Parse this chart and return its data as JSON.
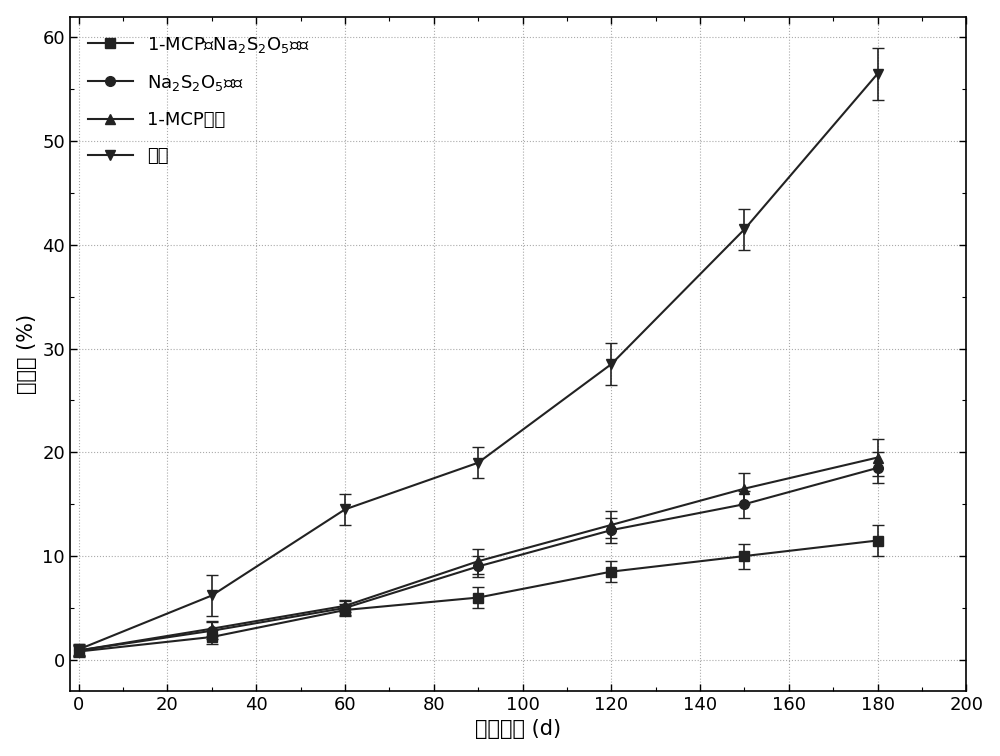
{
  "title": "",
  "xlabel": "赐藏时间 (d)",
  "ylabel": "失重率 (%)",
  "xlim": [
    -2,
    200
  ],
  "ylim": [
    -3,
    62
  ],
  "xticks": [
    0,
    20,
    40,
    60,
    80,
    100,
    120,
    140,
    160,
    180,
    200
  ],
  "yticks": [
    0,
    10,
    20,
    30,
    40,
    50,
    60
  ],
  "x": [
    0,
    30,
    60,
    90,
    120,
    150,
    180
  ],
  "series": [
    {
      "label_cn": "1-MCP与Na₂S₂O₅处理",
      "label_latex": "1-MCP与Na$_2$S$_2$O$_5$处理",
      "y": [
        0.8,
        2.2,
        4.8,
        6.0,
        8.5,
        10.0,
        11.5
      ],
      "yerr": [
        0.5,
        0.7,
        0.6,
        1.0,
        1.0,
        1.2,
        1.5
      ],
      "marker": "s",
      "color": "#222222"
    },
    {
      "label_cn": "Na₂S₂O₅处理",
      "label_latex": "Na$_2$S$_2$O$_5$处理",
      "y": [
        0.9,
        2.8,
        5.0,
        9.0,
        12.5,
        15.0,
        18.5
      ],
      "yerr": [
        0.5,
        0.8,
        0.7,
        1.0,
        1.2,
        1.3,
        1.5
      ],
      "marker": "o",
      "color": "#222222"
    },
    {
      "label_cn": "1-MCP处理",
      "label_latex": "1-MCP处理",
      "y": [
        0.9,
        3.0,
        5.2,
        9.5,
        13.0,
        16.5,
        19.5
      ],
      "yerr": [
        0.5,
        0.7,
        0.6,
        1.2,
        1.3,
        1.5,
        1.8
      ],
      "marker": "^",
      "color": "#222222"
    },
    {
      "label_cn": "对照",
      "label_latex": "对照",
      "y": [
        1.0,
        6.2,
        14.5,
        19.0,
        28.5,
        41.5,
        56.5
      ],
      "yerr": [
        0.5,
        2.0,
        1.5,
        1.5,
        2.0,
        2.0,
        2.5
      ],
      "marker": "v",
      "color": "#222222"
    }
  ],
  "background_color": "#ffffff",
  "font_size": 13,
  "axis_label_fontsize": 15,
  "tick_fontsize": 13
}
